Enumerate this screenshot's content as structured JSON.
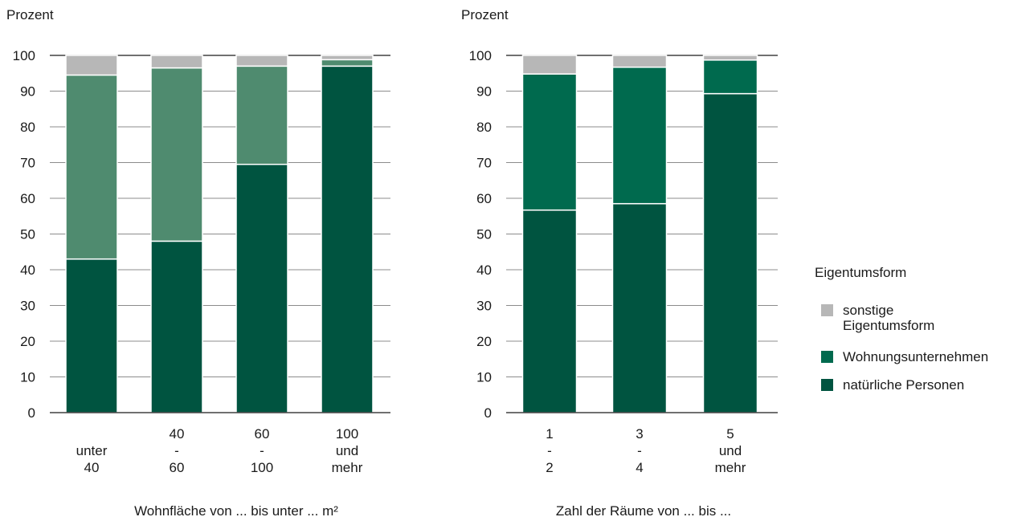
{
  "colors": {
    "sonstige": "#b7b7b7",
    "wohnungsunternehmen_left": "#4f8b6f",
    "wohnungsunternehmen_right": "#006a4e",
    "natuerliche": "#005440",
    "grid": "#8c8c8c",
    "axis": "#1a1a1a"
  },
  "legend": {
    "title": "Eigentumsform",
    "items": [
      {
        "label": "sonstige\nEigentumsform",
        "color": "#b7b7b7"
      },
      {
        "label": "Wohnungsunternehmen",
        "color": "#006a4e"
      },
      {
        "label": "natürliche Personen",
        "color": "#005440"
      }
    ]
  },
  "chart_data": [
    {
      "type": "bar",
      "stacked": true,
      "ylabel": "Prozent",
      "xlabel": "Wohnfläche von ... bis unter ... m²",
      "ylim": [
        0,
        100
      ],
      "yticks": [
        0,
        10,
        20,
        30,
        40,
        50,
        60,
        70,
        80,
        90,
        100
      ],
      "grid": true,
      "categories": [
        [
          "",
          "unter",
          "40"
        ],
        [
          "40",
          "-",
          "60"
        ],
        [
          "60",
          "-",
          "100"
        ],
        [
          "100",
          "und",
          "mehr"
        ]
      ],
      "series": [
        {
          "name": "natürliche Personen",
          "values": [
            43,
            48,
            69.5,
            97
          ]
        },
        {
          "name": "Wohnungsunternehmen",
          "values": [
            51.5,
            48.5,
            27.5,
            1.8
          ]
        },
        {
          "name": "sonstige Eigentumsform",
          "values": [
            5.5,
            3.5,
            3,
            1.2
          ]
        }
      ]
    },
    {
      "type": "bar",
      "stacked": true,
      "ylabel": "Prozent",
      "xlabel": "Zahl der Räume von ... bis ...",
      "ylim": [
        0,
        100
      ],
      "yticks": [
        0,
        10,
        20,
        30,
        40,
        50,
        60,
        70,
        80,
        90,
        100
      ],
      "grid": true,
      "categories": [
        [
          "1",
          "-",
          "2"
        ],
        [
          "3",
          "-",
          "4"
        ],
        [
          "5",
          "und",
          "mehr"
        ]
      ],
      "series": [
        {
          "name": "natürliche Personen",
          "values": [
            56.7,
            58.5,
            89.3
          ]
        },
        {
          "name": "Wohnungsunternehmen",
          "values": [
            38.1,
            38.2,
            9.4
          ]
        },
        {
          "name": "sonstige Eigentumsform",
          "values": [
            5.2,
            3.3,
            1.3
          ]
        }
      ]
    }
  ]
}
